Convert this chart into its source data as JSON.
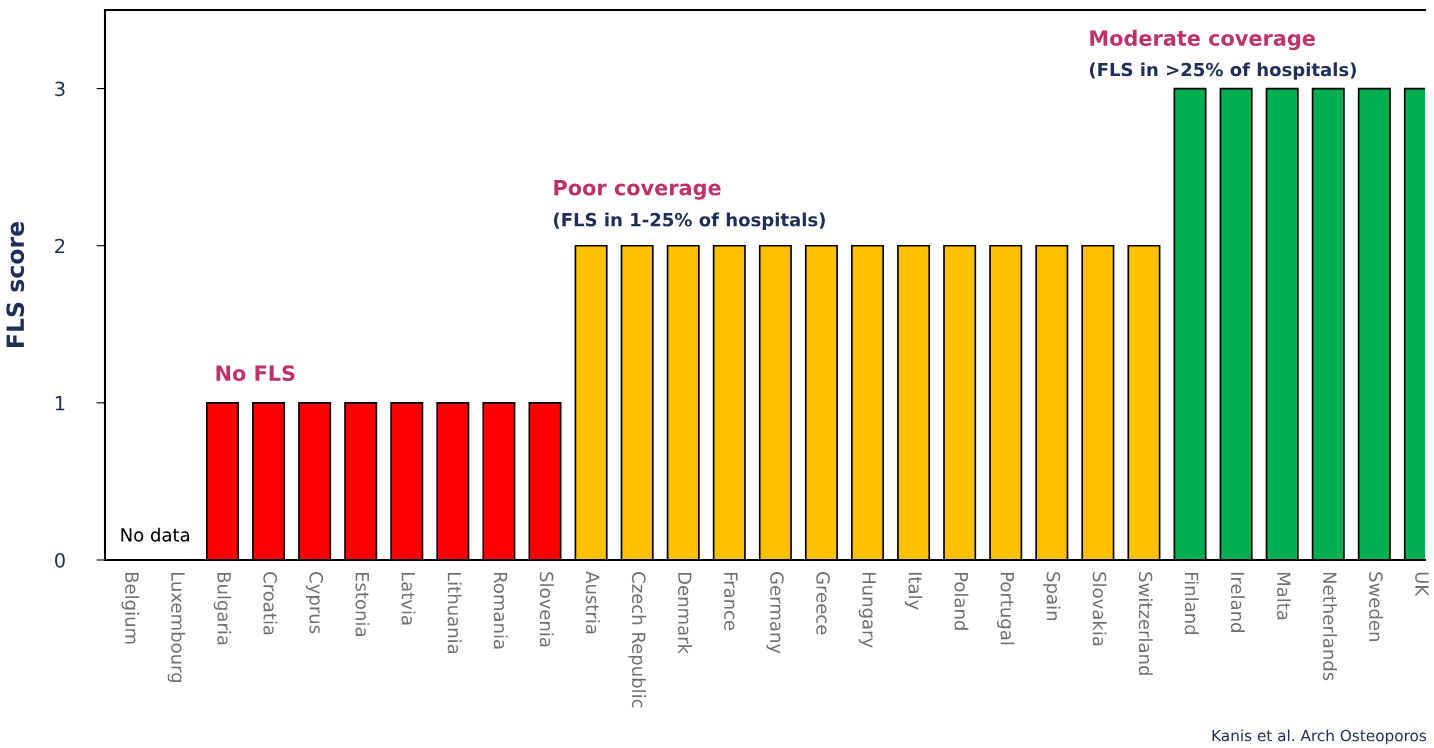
{
  "chart_data": {
    "type": "bar",
    "ylabel": "FLS score",
    "categories": [
      "Belgium",
      "Luxembourg",
      "Bulgaria",
      "Croatia",
      "Cyprus",
      "Estonia",
      "Latvia",
      "Lithuania",
      "Romania",
      "Slovenia",
      "Austria",
      "Czech Republic",
      "Denmark",
      "France",
      "Germany",
      "Greece",
      "Hungary",
      "Italy",
      "Poland",
      "Portugal",
      "Spain",
      "Slovakia",
      "Switzerland",
      "Finland",
      "Ireland",
      "Malta",
      "Netherlands",
      "Sweden",
      "UK"
    ],
    "values": [
      null,
      null,
      1,
      1,
      1,
      1,
      1,
      1,
      1,
      1,
      2,
      2,
      2,
      2,
      2,
      2,
      2,
      2,
      2,
      2,
      2,
      2,
      2,
      3,
      3,
      3,
      3,
      3,
      3
    ],
    "colors": [
      "#ff0000",
      "#ff0000",
      "#ff0000",
      "#ff0000",
      "#ff0000",
      "#ff0000",
      "#ff0000",
      "#ff0000",
      "#ff0000",
      "#ff0000",
      "#ffc000",
      "#ffc000",
      "#ffc000",
      "#ffc000",
      "#ffc000",
      "#ffc000",
      "#ffc000",
      "#ffc000",
      "#ffc000",
      "#ffc000",
      "#ffc000",
      "#ffc000",
      "#ffc000",
      "#00b050",
      "#00b050",
      "#00b050",
      "#00b050",
      "#00b050",
      "#00b050"
    ],
    "ylim": [
      0,
      3.5
    ],
    "yticks": [
      0,
      1,
      2,
      3
    ],
    "grid": false,
    "legend": false,
    "annotations": [
      "No data",
      "No FLS",
      "Poor coverage",
      "(FLS in 1-25% of hospitals)",
      "Moderate coverage",
      "(FLS in >25% of hospitals)",
      "Kanis et al. Arch Osteoporos"
    ]
  }
}
